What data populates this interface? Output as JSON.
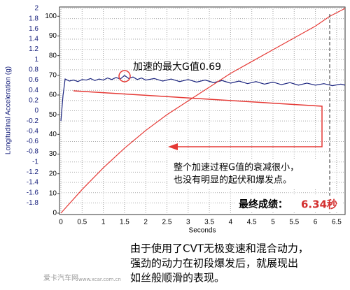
{
  "chart_data": {
    "type": "line",
    "xlabel": "Seconds",
    "ylabel": "Longitudinal Acceleration (g)",
    "xlim": [
      0,
      6.7
    ],
    "xticks": [
      0,
      0.5,
      1,
      1.5,
      2,
      2.5,
      3,
      3.5,
      4,
      4.5,
      5,
      5.5,
      6,
      6.5
    ],
    "ylim": [
      -2,
      2
    ],
    "yticks": [
      -1.8,
      -1.6,
      -1.4,
      -1.2,
      -1,
      -0.8,
      -0.6,
      -0.4,
      -0.2,
      0,
      0.2,
      0.4,
      0.6,
      0.8,
      1,
      1.2,
      1.4,
      1.6,
      1.8,
      2
    ],
    "y2lim": [
      0,
      104
    ],
    "y2ticks": [
      0,
      10,
      20,
      30,
      40,
      50,
      60,
      70,
      80,
      90,
      100
    ],
    "grid": true,
    "series": [
      {
        "color": "#1a237e",
        "x": [
          0,
          0.05,
          0.1,
          0.2,
          0.3,
          0.4,
          0.5,
          0.6,
          0.7,
          0.8,
          0.9,
          1.0,
          1.1,
          1.2,
          1.3,
          1.4,
          1.5,
          1.6,
          1.7,
          1.8,
          1.9,
          2.0,
          2.2,
          2.4,
          2.6,
          2.8,
          3.0,
          3.2,
          3.4,
          3.6,
          3.8,
          4.0,
          4.2,
          4.4,
          4.6,
          4.8,
          5.0,
          5.2,
          5.4,
          5.6,
          5.8,
          6.0,
          6.2,
          6.4,
          6.6,
          6.7
        ],
        "values": [
          -0.2,
          0.3,
          0.62,
          0.58,
          0.6,
          0.57,
          0.61,
          0.6,
          0.63,
          0.59,
          0.62,
          0.6,
          0.64,
          0.61,
          0.65,
          0.62,
          0.69,
          0.63,
          0.66,
          0.61,
          0.64,
          0.6,
          0.63,
          0.58,
          0.62,
          0.57,
          0.61,
          0.56,
          0.6,
          0.55,
          0.59,
          0.54,
          0.58,
          0.53,
          0.57,
          0.52,
          0.56,
          0.51,
          0.55,
          0.5,
          0.54,
          0.5,
          0.53,
          0.49,
          0.52,
          0.5
        ]
      },
      {
        "color": "#e53935",
        "axis": "y2",
        "x": [
          0,
          0.5,
          1,
          1.5,
          2,
          2.5,
          3,
          3.5,
          4,
          4.5,
          5,
          5.5,
          6,
          6.34,
          6.7
        ],
        "values": [
          0,
          12,
          23,
          33,
          42,
          50,
          57,
          64,
          71,
          77,
          83,
          89,
          95,
          100,
          104
        ]
      }
    ],
    "annotations": {
      "peak": "加速的最大G值0.69",
      "decay": [
        "整个加速过程G值的衰减很小，",
        "也没有明显的起伏和爆发点。"
      ],
      "result_label": "最终成绩：",
      "result_value": "6.34秒"
    },
    "caption": [
      "由于使用了CVT无极变速和混合动力，",
      "强劲的动力在初段爆发后，就展现出",
      "如丝般顺滑的表现。"
    ],
    "watermark": [
      "爱卡汽车网",
      "www.xcar.com.cn"
    ]
  }
}
